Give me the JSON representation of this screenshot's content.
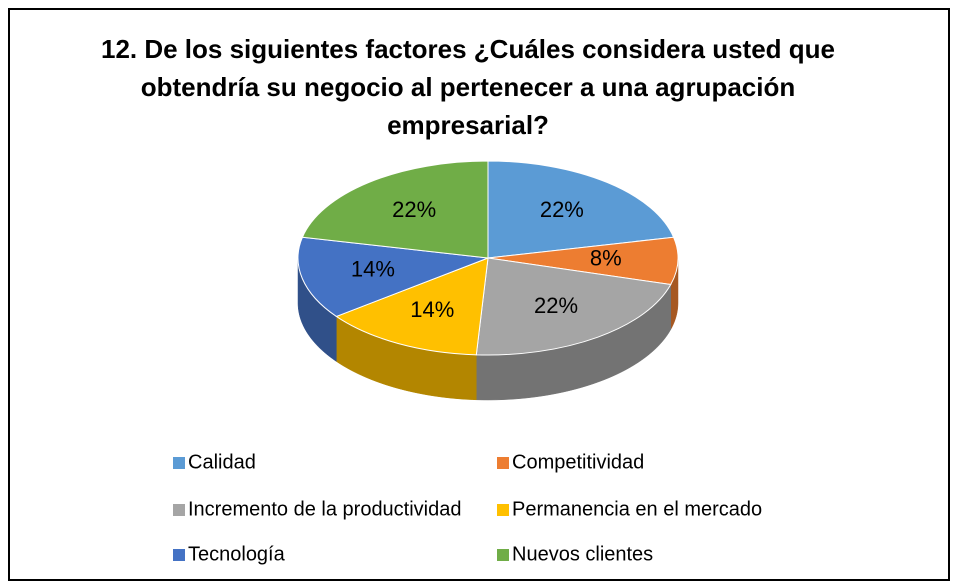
{
  "chart_data": {
    "type": "pie3d",
    "title": "12. De los siguientes factores ¿Cuáles considera usted que obtendría su negocio al pertenecer a una agrupación empresarial?",
    "categories": [
      "Calidad",
      "Competitividad",
      "Incremento de la productividad",
      "Permanencia en el mercado",
      "Tecnología",
      "Nuevos clientes"
    ],
    "values": [
      22,
      8,
      22,
      14,
      14,
      22
    ],
    "value_labels": [
      "22%",
      "8%",
      "22%",
      "14%",
      "14%",
      "22%"
    ],
    "colors": [
      "#5b9bd5",
      "#ed7d31",
      "#a5a5a5",
      "#ffc000",
      "#4472c4",
      "#70ad47"
    ],
    "legend": "bottom"
  }
}
